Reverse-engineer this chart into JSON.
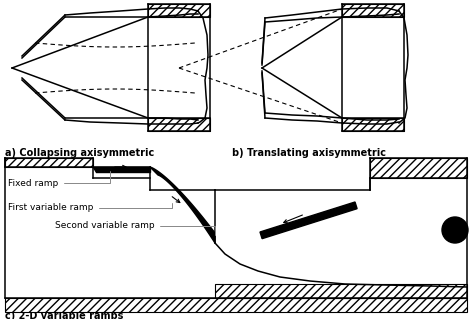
{
  "label_a": "a) Collapsing axisymmetric",
  "label_b": "b) Translating axisymmetric",
  "label_c": "c) 2-D variable ramps",
  "annotation_fixed": "Fixed ramp",
  "annotation_first": "First variable ramp",
  "annotation_second": "Second variable ramp",
  "bg_color": "#ffffff",
  "lc": "#000000",
  "label_fontsize": 7.0,
  "annot_fontsize": 6.5
}
